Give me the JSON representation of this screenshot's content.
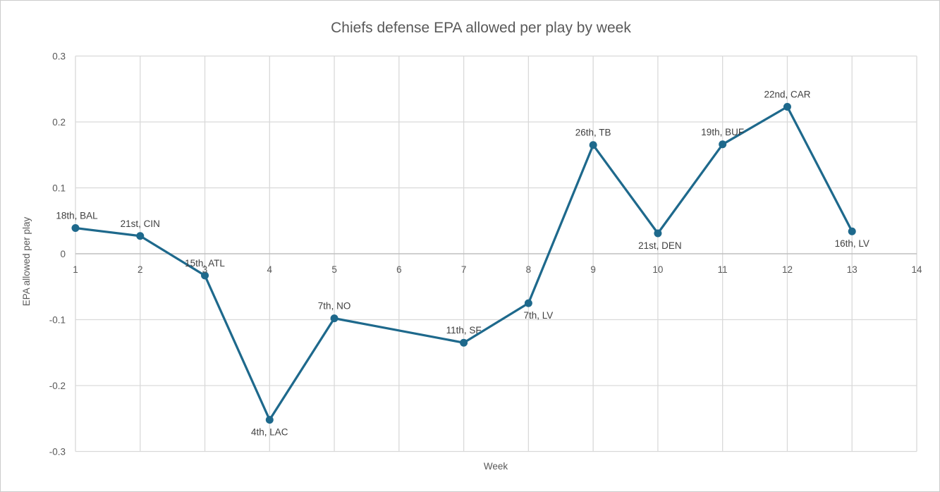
{
  "chart_data": {
    "type": "line",
    "title": "Chiefs defense EPA allowed per play by week",
    "xlabel": "Week",
    "ylabel": "EPA allowed per play",
    "x": [
      1,
      2,
      3,
      4,
      5,
      7,
      8,
      9,
      10,
      11,
      12,
      13
    ],
    "values": [
      0.039,
      0.027,
      -0.033,
      -0.252,
      -0.098,
      -0.135,
      -0.075,
      0.165,
      0.031,
      0.166,
      0.223,
      0.034
    ],
    "point_labels": [
      "18th, BAL",
      "21st, CIN",
      "15th, ATL",
      "4th, LAC",
      "7th, NO",
      "11th, SF",
      "7th, LV",
      "26th, TB",
      "21st, DEN",
      "19th, BUF",
      "22nd, CAR",
      "16th, LV"
    ],
    "label_positions": [
      "above",
      "above",
      "above",
      "below",
      "above",
      "above",
      "below",
      "above",
      "below",
      "above",
      "above",
      "below"
    ],
    "label_dx": [
      2,
      0,
      0,
      0,
      0,
      0,
      14,
      0,
      3,
      0,
      0,
      0
    ],
    "xlim": [
      1,
      14
    ],
    "ylim": [
      -0.3,
      0.3
    ],
    "x_ticks": [
      1,
      2,
      3,
      4,
      5,
      6,
      7,
      8,
      9,
      10,
      11,
      12,
      13,
      14
    ],
    "x_tick_labels": [
      "1",
      "2",
      "3",
      "4",
      "5",
      "6",
      "7",
      "8",
      "9",
      "10",
      "11",
      "12",
      "13",
      "14"
    ],
    "y_ticks": [
      0.3,
      0.2,
      0.1,
      0,
      -0.1,
      -0.2,
      -0.3
    ],
    "y_tick_labels": [
      "0.3",
      "0.2",
      "0.1",
      "0",
      "-0.1",
      "-0.2",
      "-0.3"
    ],
    "grid": true,
    "legend": "none",
    "missing_weeks": [
      6
    ],
    "colors": {
      "line": "#1e698c",
      "marker": "#1e698c",
      "grid": "#d9d9d9",
      "axis_line": "#bfbfbf",
      "title_text": "#595959",
      "tick_text": "#595959",
      "label_text": "#404040",
      "background": "#ffffff",
      "border": "#cccccc"
    }
  }
}
